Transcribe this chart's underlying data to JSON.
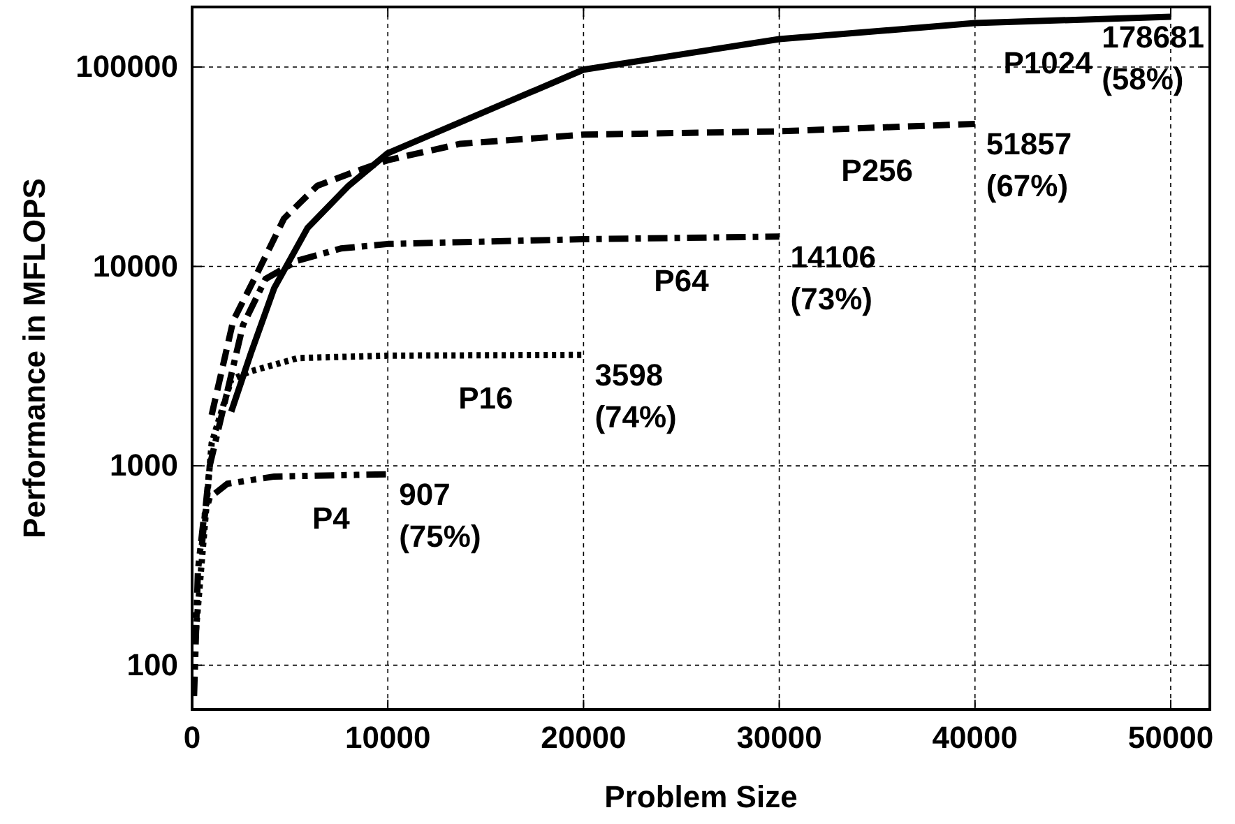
{
  "chart_data": {
    "type": "line",
    "xlabel": "Problem Size",
    "ylabel": "Performance in MFLOPS",
    "log": "y",
    "grid": true,
    "xlim": [
      0,
      52000
    ],
    "xticks": [
      0,
      10000,
      20000,
      30000,
      40000,
      50000
    ],
    "ylim": [
      60,
      200000
    ],
    "yticks": [
      100,
      1000,
      10000,
      100000
    ],
    "series": [
      {
        "name": "P1024",
        "color": "#000000",
        "line_style": "solid",
        "x": [
          2000,
          3000,
          4200,
          5900,
          8000,
          10000,
          20000,
          30000,
          40000,
          50000
        ],
        "values": [
          1870,
          3660,
          7800,
          15600,
          25400,
          37000,
          97000,
          138000,
          166000,
          178681
        ]
      },
      {
        "name": "P256",
        "color": "#000000",
        "line_style": "dashed",
        "x": [
          1000,
          2100,
          3300,
          4700,
          6400,
          8300,
          10000,
          13700,
          20000,
          30000,
          40000
        ],
        "values": [
          1800,
          5340,
          9140,
          17400,
          25400,
          29800,
          34100,
          41200,
          45800,
          47600,
          51857
        ]
      },
      {
        "name": "P64",
        "color": "#000000",
        "line_style": "dashdot",
        "x": [
          500,
          900,
          2600,
          3750,
          5400,
          7600,
          10000,
          20000,
          30000
        ],
        "values": [
          400,
          1000,
          5070,
          8650,
          10700,
          12300,
          12960,
          13700,
          14106
        ]
      },
      {
        "name": "P16",
        "color": "#000000",
        "line_style": "dotted",
        "x": [
          200,
          1000,
          2000,
          2900,
          5400,
          10000,
          20000
        ],
        "values": [
          150,
          1300,
          2700,
          2960,
          3470,
          3570,
          3598
        ]
      },
      {
        "name": "P4",
        "color": "#000000",
        "line_style": "dashdotdot",
        "x": [
          100,
          300,
          600,
          900,
          1800,
          4200,
          10000
        ],
        "values": [
          70,
          300,
          550,
          693,
          813,
          884,
          907
        ]
      }
    ],
    "annotations": [
      {
        "text": "178681\n(58%)",
        "x": 50000,
        "y": 178681
      },
      {
        "text": "51857\n(67%)",
        "x": 40000,
        "y": 51857
      },
      {
        "text": "14106\n(73%)",
        "x": 30000,
        "y": 14106
      },
      {
        "text": "3598\n(74%)",
        "x": 20000,
        "y": 3598
      },
      {
        "text": "907\n(75%)",
        "x": 10000,
        "y": 907
      }
    ]
  }
}
